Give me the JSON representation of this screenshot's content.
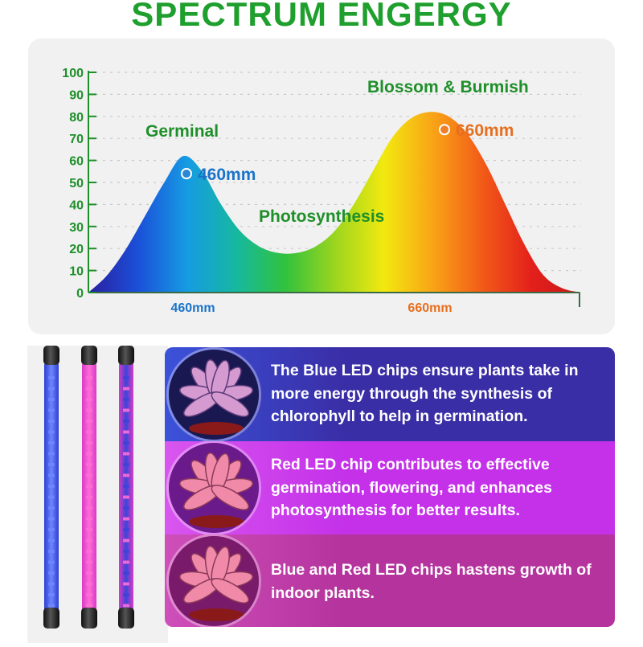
{
  "page": {
    "title": "SPECTRUM ENGERGY"
  },
  "chart_data": {
    "type": "area",
    "title": "SPECTRUM ENGERGY",
    "xlabel": "",
    "ylabel": "",
    "ylim": [
      0,
      100
    ],
    "yticks": [
      0,
      10,
      20,
      30,
      40,
      50,
      60,
      70,
      80,
      90,
      100
    ],
    "xticks": [
      "460mm",
      "660mm"
    ],
    "series": [
      {
        "values": [
          0,
          8,
          20,
          35,
          50,
          62,
          55,
          40,
          28,
          21,
          18,
          18,
          21,
          28,
          40,
          55,
          70,
          79,
          82,
          80,
          72,
          58,
          40,
          22,
          8,
          2,
          0
        ]
      }
    ],
    "gradient": [
      "#2a1fa0",
      "#1b4fd8",
      "#169be3",
      "#16b8a0",
      "#31c23d",
      "#9bd51f",
      "#f2e90f",
      "#f9a317",
      "#f25a18",
      "#e3201b",
      "#c9171b"
    ],
    "peaks": [
      {
        "label": "460mm",
        "value": 54,
        "color": "#1a73c9",
        "dot": "#2a86d6"
      },
      {
        "label": "660mm",
        "value": 74,
        "color": "#e66f1f",
        "dot": "#f07f2a"
      }
    ],
    "annotations": [
      {
        "text": "Germinal",
        "color": "#1f8f2a"
      },
      {
        "text": "Blossom & Burmish",
        "color": "#1f8f2a"
      },
      {
        "text": "Photosynthesis",
        "color": "#1f8f2a"
      }
    ],
    "axis_color": "#1f8f2a",
    "tick_label_colors": [
      "#1a73c9",
      "#e66f1f"
    ],
    "grid": true
  },
  "features": [
    {
      "text": "The Blue LED chips ensure plants take in more energy through the synthesis of chlorophyll to help in germination.",
      "bg": "#3a2ea6",
      "glow": "#3b52d9"
    },
    {
      "text": "Red LED chip contributes to effective germination, flowering, and enhances photosynthesis for better results.",
      "bg": "#c431e9",
      "glow": "#d856ef"
    },
    {
      "text": "Blue and Red LED chips hastens growth of indoor plants.",
      "bg": "#b4339d",
      "glow": "#cf4fba"
    }
  ],
  "tubes": [
    {
      "color": "#2b3fd1",
      "led": "#6f86ff"
    },
    {
      "color": "#d93ac8",
      "led": "#ff6dd6"
    },
    {
      "color": "#d93ac8",
      "led": "#3d45d6"
    }
  ]
}
